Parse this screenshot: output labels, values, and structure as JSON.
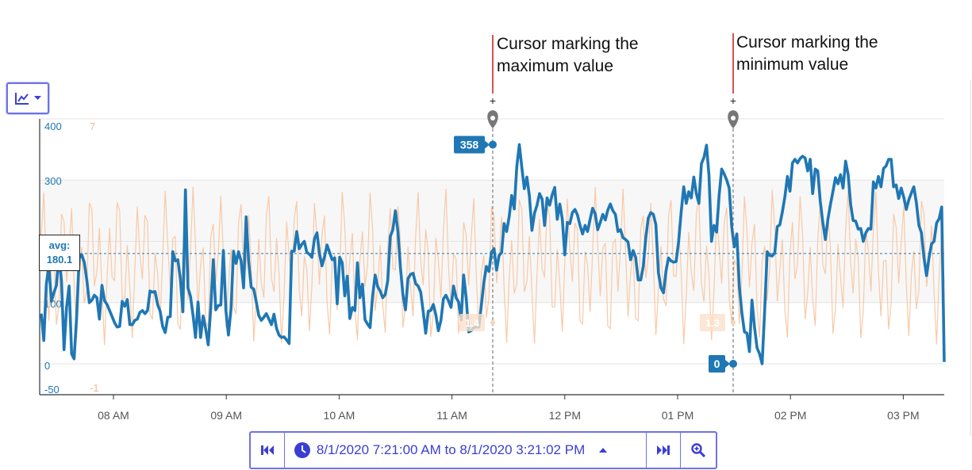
{
  "chart_data": {
    "type": "line",
    "ylim": [
      -50,
      400
    ],
    "y_ticks": [
      400,
      300,
      100,
      0,
      -50
    ],
    "y2lim": [
      -1,
      7
    ],
    "y2_ticks": [
      "7",
      "-1"
    ],
    "x_ticks": [
      "08 AM",
      "09 AM",
      "10 AM",
      "11 AM",
      "12 PM",
      "01 PM",
      "02 PM",
      "03 PM"
    ],
    "grid": true,
    "series_primary_color": "#1f77b4",
    "series_secondary_color": "#f9c9a6",
    "primary_values": [
      82,
      38,
      130,
      160,
      102,
      116,
      128,
      178,
      135,
      23,
      92,
      127,
      16,
      8,
      77,
      173,
      178,
      166,
      137,
      100,
      104,
      112,
      108,
      73,
      128,
      103,
      97,
      87,
      77,
      67,
      60,
      61,
      102,
      94,
      105,
      64,
      64,
      71,
      73,
      84,
      87,
      82,
      87,
      119,
      117,
      118,
      97,
      86,
      61,
      51,
      76,
      77,
      183,
      168,
      170,
      139,
      85,
      284,
      124,
      110,
      79,
      43,
      101,
      43,
      78,
      57,
      31,
      91,
      170,
      88,
      95,
      96,
      185,
      87,
      47,
      89,
      184,
      164,
      183,
      168,
      124,
      240,
      167,
      125,
      122,
      101,
      79,
      71,
      76,
      82,
      73,
      64,
      81,
      58,
      47,
      43,
      44,
      39,
      33,
      184,
      184,
      216,
      188,
      195,
      200,
      182,
      179,
      174,
      204,
      214,
      180,
      160,
      175,
      194,
      182,
      170,
      173,
      98,
      174,
      165,
      111,
      143,
      74,
      92,
      87,
      165,
      108,
      130,
      72,
      65,
      59,
      111,
      145,
      126,
      119,
      108,
      113,
      136,
      208,
      219,
      250,
      216,
      158,
      113,
      88,
      139,
      146,
      148,
      131,
      127,
      117,
      86,
      50,
      86,
      87,
      97,
      80,
      54,
      71,
      106,
      112,
      103,
      92,
      127,
      108,
      101,
      72,
      145,
      108,
      52,
      54,
      59,
      60,
      60,
      96,
      133,
      159,
      151,
      182,
      188,
      153,
      177,
      182,
      229,
      216,
      240,
      275,
      253,
      322,
      358,
      320,
      286,
      305,
      274,
      218,
      246,
      259,
      278,
      269,
      226,
      271,
      259,
      276,
      288,
      236,
      261,
      236,
      178,
      231,
      229,
      247,
      252,
      243,
      226,
      212,
      226,
      216,
      236,
      254,
      245,
      219,
      231,
      244,
      235,
      251,
      261,
      250,
      244,
      216,
      219,
      206,
      203,
      199,
      170,
      185,
      174,
      137,
      137,
      159,
      206,
      238,
      247,
      244,
      227,
      149,
      124,
      116,
      152,
      173,
      168,
      166,
      167,
      200,
      248,
      289,
      262,
      281,
      271,
      305,
      278,
      262,
      327,
      337,
      357,
      308,
      200,
      226,
      215,
      275,
      318,
      310,
      300,
      287,
      224,
      191,
      212,
      126,
      83,
      52,
      50,
      20,
      104,
      60,
      26,
      16,
      0,
      87,
      183,
      177,
      176,
      181,
      224,
      227,
      248,
      273,
      306,
      282,
      328,
      334,
      328,
      335,
      339,
      336,
      315,
      334,
      278,
      318,
      315,
      265,
      231,
      203,
      236,
      260,
      281,
      304,
      294,
      309,
      287,
      331,
      309,
      260,
      234,
      233,
      220,
      221,
      200,
      214,
      221,
      220,
      297,
      287,
      306,
      289,
      319,
      323,
      334,
      334,
      289,
      292,
      270,
      287,
      272,
      252,
      268,
      279,
      289,
      263,
      226,
      214,
      173,
      144,
      174,
      196,
      200,
      230,
      237,
      256,
      3
    ],
    "secondary_values_note": "",
    "average": {
      "label": "avg:",
      "value": "180.1"
    },
    "max_cursor": {
      "value_label": "358"
    },
    "min_cursor": {
      "value_label": "0"
    },
    "secondary_cursor_labels": [
      "1.4",
      "1.3"
    ]
  },
  "annotations": {
    "max": [
      "Cursor marking the",
      "maximum value"
    ],
    "min": [
      "Cursor marking the",
      "minimum value"
    ]
  },
  "cursor_symbol": "+",
  "toolbar": {
    "chart_type_icon": "line-chart-icon",
    "range_text": "8/1/2020 7:21:00 AM to 8/1/2020 3:21:02 PM",
    "icons": [
      "skip-to-start-icon",
      "clock-icon",
      "caret-up-icon",
      "skip-to-end-icon",
      "zoom-in-icon"
    ]
  }
}
